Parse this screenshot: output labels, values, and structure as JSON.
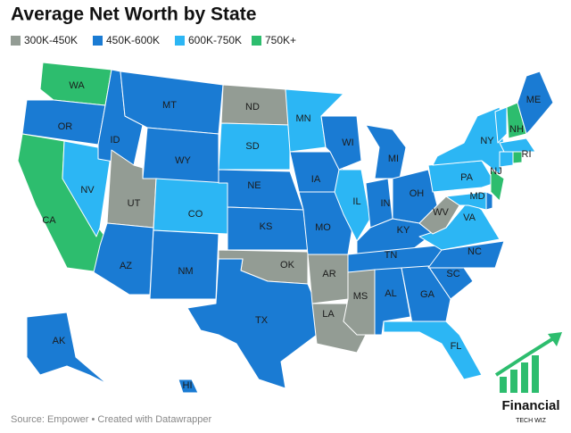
{
  "title": "Average Net Worth by State",
  "legend": [
    {
      "label": "300K-450K",
      "color": "#939c94"
    },
    {
      "label": "450K-600K",
      "color": "#1a7bd3"
    },
    {
      "label": "600K-750K",
      "color": "#2cb6f4"
    },
    {
      "label": "750K+",
      "color": "#2dbd6e"
    }
  ],
  "states": [
    {
      "label": "WA",
      "group": 3
    },
    {
      "label": "OR",
      "group": 1
    },
    {
      "label": "CA",
      "group": 3
    },
    {
      "label": "NV",
      "group": 2
    },
    {
      "label": "ID",
      "group": 1
    },
    {
      "label": "MT",
      "group": 1
    },
    {
      "label": "WY",
      "group": 1
    },
    {
      "label": "UT",
      "group": 0
    },
    {
      "label": "AZ",
      "group": 1
    },
    {
      "label": "CO",
      "group": 2
    },
    {
      "label": "NM",
      "group": 1
    },
    {
      "label": "ND",
      "group": 0
    },
    {
      "label": "SD",
      "group": 2
    },
    {
      "label": "NE",
      "group": 1
    },
    {
      "label": "KS",
      "group": 1
    },
    {
      "label": "OK",
      "group": 0
    },
    {
      "label": "TX",
      "group": 1
    },
    {
      "label": "MN",
      "group": 2
    },
    {
      "label": "IA",
      "group": 1
    },
    {
      "label": "MO",
      "group": 1
    },
    {
      "label": "AR",
      "group": 0
    },
    {
      "label": "LA",
      "group": 0
    },
    {
      "label": "WI",
      "group": 1
    },
    {
      "label": "IL",
      "group": 2
    },
    {
      "label": "MI",
      "group": 1
    },
    {
      "label": "IN",
      "group": 1
    },
    {
      "label": "OH",
      "group": 1
    },
    {
      "label": "KY",
      "group": 1
    },
    {
      "label": "TN",
      "group": 1
    },
    {
      "label": "MS",
      "group": 0
    },
    {
      "label": "AL",
      "group": 1
    },
    {
      "label": "GA",
      "group": 1
    },
    {
      "label": "FL",
      "group": 2
    },
    {
      "label": "SC",
      "group": 1
    },
    {
      "label": "NC",
      "group": 1
    },
    {
      "label": "VA",
      "group": 2
    },
    {
      "label": "WV",
      "group": 0
    },
    {
      "label": "PA",
      "group": 2
    },
    {
      "label": "NY",
      "group": 2
    },
    {
      "label": "NJ",
      "group": 3
    },
    {
      "label": "MD",
      "group": 2
    },
    {
      "label": null,
      "group": 1
    },
    {
      "label": null,
      "group": 2
    },
    {
      "label": "NH",
      "group": 3
    },
    {
      "label": "ME",
      "group": 1
    },
    {
      "label": null,
      "group": 2
    },
    {
      "label": null,
      "group": 2
    },
    {
      "label": "RI",
      "group": 3
    },
    {
      "label": "AK",
      "group": 1
    },
    {
      "label": "HI",
      "group": 1
    }
  ],
  "source": "Source: Empower • Created with Datawrapper",
  "logo": {
    "name": "Financial",
    "tagline": "TECH WIZ"
  }
}
